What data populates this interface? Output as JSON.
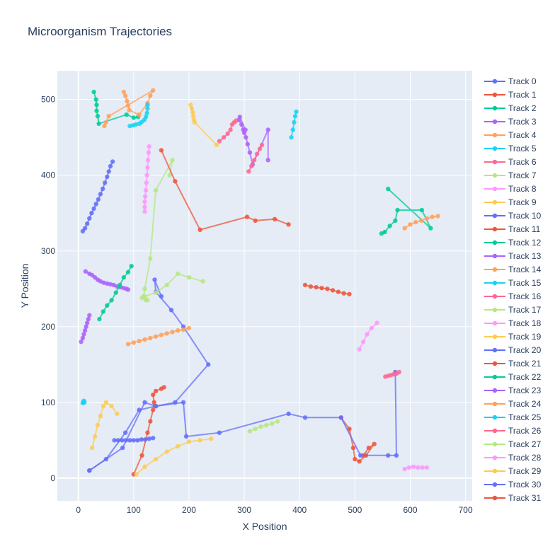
{
  "chart_data": {
    "type": "line",
    "title": "Microorganism Trajectories",
    "xlabel": "X Position",
    "ylabel": "Y Position",
    "xlim": [
      -38,
      712
    ],
    "ylim": [
      -30,
      538
    ],
    "xticks": [
      0,
      100,
      200,
      300,
      400,
      500,
      600,
      700
    ],
    "yticks": [
      0,
      100,
      200,
      300,
      400,
      500
    ],
    "grid": true,
    "legend_position": "right",
    "colors": {
      "plot_bg": "#e5ecf6",
      "grid": "#ffffff",
      "text": "#2a3f5f",
      "palette": [
        "#636efa",
        "#EF553B",
        "#00cc96",
        "#ab63fa",
        "#FFA15A",
        "#19d3f3",
        "#FF6692",
        "#B6E880",
        "#FF97FF",
        "#FECB52"
      ]
    },
    "series": [
      {
        "name": "Track 0",
        "points": [
          [
            20,
            10
          ],
          [
            50,
            25
          ],
          [
            85,
            60
          ],
          [
            110,
            90
          ],
          [
            140,
            95
          ],
          [
            175,
            100
          ],
          [
            235,
            150
          ],
          [
            190,
            200
          ],
          [
            168,
            222
          ],
          [
            140,
            246
          ],
          [
            138,
            262
          ],
          [
            150,
            240
          ]
        ]
      },
      {
        "name": "Track 1",
        "points": [
          [
            475,
            80
          ],
          [
            490,
            65
          ],
          [
            497,
            40
          ],
          [
            500,
            25
          ],
          [
            508,
            22
          ],
          [
            520,
            30
          ],
          [
            535,
            45
          ],
          [
            525,
            40
          ],
          [
            515,
            30
          ]
        ]
      },
      {
        "name": "Track 2",
        "points": [
          [
            28,
            510
          ],
          [
            32,
            500
          ],
          [
            33,
            493
          ],
          [
            33,
            485
          ],
          [
            35,
            478
          ],
          [
            37,
            468
          ],
          [
            87,
            480
          ],
          [
            100,
            476
          ],
          [
            108,
            477
          ]
        ]
      },
      {
        "name": "Track 3",
        "points": [
          [
            302,
            460
          ],
          [
            292,
            477
          ],
          [
            290,
            473
          ],
          [
            295,
            467
          ],
          [
            298,
            460
          ],
          [
            300,
            456
          ],
          [
            303,
            450
          ],
          [
            306,
            441
          ],
          [
            310,
            430
          ],
          [
            315,
            414
          ],
          [
            343,
            460
          ],
          [
            343,
            420
          ]
        ]
      },
      {
        "name": "Track 4",
        "points": [
          [
            82,
            510
          ],
          [
            85,
            505
          ],
          [
            88,
            498
          ],
          [
            90,
            492
          ],
          [
            92,
            486
          ],
          [
            110,
            480
          ],
          [
            125,
            495
          ],
          [
            130,
            505
          ],
          [
            135,
            512
          ],
          [
            55,
            478
          ],
          [
            50,
            470
          ],
          [
            47,
            465
          ]
        ]
      },
      {
        "name": "Track 5",
        "points": [
          [
            93,
            465
          ],
          [
            99,
            466
          ],
          [
            104,
            467
          ],
          [
            110,
            468
          ],
          [
            114,
            470
          ],
          [
            119,
            473
          ],
          [
            122,
            477
          ],
          [
            124,
            482
          ],
          [
            125,
            488
          ],
          [
            125,
            493
          ]
        ]
      },
      {
        "name": "Track 6",
        "points": [
          [
            255,
            445
          ],
          [
            263,
            450
          ],
          [
            270,
            455
          ],
          [
            275,
            460
          ],
          [
            278,
            467
          ],
          [
            282,
            470
          ],
          [
            285,
            472
          ]
        ]
      },
      {
        "name": "Track 7",
        "points": [
          [
            165,
            400
          ],
          [
            170,
            420
          ],
          [
            140,
            380
          ],
          [
            130,
            290
          ],
          [
            120,
            250
          ],
          [
            118,
            240
          ],
          [
            122,
            235
          ],
          [
            125,
            235
          ]
        ]
      },
      {
        "name": "Track 8",
        "points": [
          [
            128,
            438
          ],
          [
            127,
            430
          ],
          [
            126,
            420
          ],
          [
            125,
            410
          ],
          [
            124,
            400
          ],
          [
            123,
            390
          ],
          [
            122,
            380
          ],
          [
            121,
            372
          ],
          [
            120,
            365
          ],
          [
            120,
            358
          ],
          [
            120,
            352
          ]
        ]
      },
      {
        "name": "Track 9",
        "points": [
          [
            203,
            493
          ],
          [
            205,
            488
          ],
          [
            207,
            483
          ],
          [
            208,
            478
          ],
          [
            209,
            473
          ],
          [
            210,
            470
          ],
          [
            250,
            440
          ]
        ]
      },
      {
        "name": "Track 10",
        "points": [
          [
            62,
            418
          ],
          [
            58,
            412
          ],
          [
            55,
            405
          ],
          [
            52,
            398
          ],
          [
            48,
            390
          ],
          [
            44,
            382
          ],
          [
            40,
            375
          ],
          [
            36,
            368
          ],
          [
            32,
            362
          ],
          [
            28,
            356
          ],
          [
            24,
            350
          ],
          [
            20,
            343
          ],
          [
            16,
            336
          ],
          [
            12,
            330
          ],
          [
            8,
            326
          ]
        ]
      },
      {
        "name": "Track 11",
        "points": [
          [
            150,
            433
          ],
          [
            175,
            392
          ],
          [
            220,
            328
          ],
          [
            305,
            345
          ],
          [
            320,
            340
          ],
          [
            355,
            342
          ],
          [
            380,
            335
          ]
        ]
      },
      {
        "name": "Track 12",
        "points": [
          [
            560,
            382
          ],
          [
            637,
            330
          ],
          [
            621,
            354
          ],
          [
            577,
            354
          ],
          [
            573,
            340
          ],
          [
            563,
            333
          ],
          [
            554,
            325
          ],
          [
            548,
            323
          ]
        ]
      },
      {
        "name": "Track 13",
        "points": [
          [
            13,
            273
          ],
          [
            20,
            270
          ],
          [
            25,
            268
          ],
          [
            30,
            265
          ],
          [
            35,
            262
          ],
          [
            40,
            260
          ],
          [
            46,
            258
          ],
          [
            52,
            257
          ],
          [
            58,
            256
          ],
          [
            64,
            255
          ],
          [
            70,
            253
          ],
          [
            76,
            252
          ],
          [
            82,
            251
          ],
          [
            87,
            250
          ],
          [
            90,
            249
          ]
        ]
      },
      {
        "name": "Track 14",
        "points": [
          [
            90,
            177
          ],
          [
            100,
            179
          ],
          [
            110,
            181
          ],
          [
            120,
            183
          ],
          [
            130,
            185
          ],
          [
            140,
            187
          ],
          [
            150,
            189
          ],
          [
            160,
            191
          ],
          [
            170,
            193
          ],
          [
            180,
            195
          ],
          [
            190,
            196
          ],
          [
            200,
            198
          ]
        ]
      },
      {
        "name": "Track 15",
        "points": [
          [
            385,
            450
          ],
          [
            388,
            460
          ],
          [
            390,
            470
          ],
          [
            392,
            478
          ],
          [
            394,
            484
          ]
        ]
      },
      {
        "name": "Track 16",
        "points": [
          [
            308,
            405
          ],
          [
            313,
            412
          ],
          [
            318,
            420
          ],
          [
            323,
            428
          ],
          [
            328,
            435
          ],
          [
            332,
            440
          ]
        ]
      },
      {
        "name": "Track 17",
        "points": [
          [
            225,
            260
          ],
          [
            200,
            265
          ],
          [
            180,
            270
          ],
          [
            160,
            255
          ],
          [
            140,
            245
          ],
          [
            120,
            240
          ],
          [
            115,
            238
          ]
        ]
      },
      {
        "name": "Track 18",
        "points": [
          [
            508,
            170
          ],
          [
            515,
            180
          ],
          [
            522,
            190
          ],
          [
            530,
            198
          ],
          [
            540,
            205
          ]
        ]
      },
      {
        "name": "Track 19",
        "points": [
          [
            25,
            40
          ],
          [
            30,
            55
          ],
          [
            35,
            70
          ],
          [
            40,
            82
          ],
          [
            45,
            95
          ],
          [
            50,
            100
          ],
          [
            60,
            95
          ],
          [
            70,
            85
          ]
        ]
      },
      {
        "name": "Track 20",
        "points": [
          [
            20,
            10
          ],
          [
            80,
            40
          ],
          [
            120,
            100
          ],
          [
            140,
            95
          ],
          [
            190,
            100
          ],
          [
            195,
            55
          ],
          [
            255,
            60
          ],
          [
            380,
            85
          ],
          [
            410,
            80
          ],
          [
            475,
            80
          ],
          [
            510,
            30
          ],
          [
            560,
            30
          ],
          [
            575,
            30
          ],
          [
            573,
            140
          ]
        ]
      },
      {
        "name": "Track 21",
        "points": [
          [
            100,
            5
          ],
          [
            115,
            30
          ],
          [
            125,
            60
          ],
          [
            130,
            75
          ],
          [
            135,
            90
          ],
          [
            137,
            100
          ],
          [
            135,
            110
          ],
          [
            140,
            115
          ],
          [
            150,
            118
          ],
          [
            155,
            120
          ]
        ]
      },
      {
        "name": "Track 22",
        "points": [
          [
            38,
            210
          ],
          [
            45,
            220
          ],
          [
            52,
            228
          ],
          [
            60,
            235
          ],
          [
            68,
            245
          ],
          [
            75,
            255
          ],
          [
            82,
            265
          ],
          [
            90,
            272
          ],
          [
            96,
            280
          ]
        ]
      },
      {
        "name": "Track 23",
        "points": [
          [
            5,
            180
          ],
          [
            8,
            185
          ],
          [
            10,
            190
          ],
          [
            12,
            195
          ],
          [
            14,
            200
          ],
          [
            16,
            205
          ],
          [
            18,
            210
          ],
          [
            20,
            215
          ]
        ]
      },
      {
        "name": "Track 24",
        "points": [
          [
            590,
            330
          ],
          [
            600,
            335
          ],
          [
            610,
            338
          ],
          [
            620,
            340
          ],
          [
            630,
            343
          ],
          [
            640,
            345
          ],
          [
            650,
            346
          ]
        ]
      },
      {
        "name": "Track 25",
        "points": [
          [
            8,
            99
          ],
          [
            9,
            101
          ],
          [
            10,
            102
          ],
          [
            11,
            100
          ]
        ]
      },
      {
        "name": "Track 26",
        "points": [
          [
            580,
            140
          ],
          [
            575,
            138
          ],
          [
            570,
            137
          ],
          [
            565,
            136
          ],
          [
            560,
            135
          ],
          [
            555,
            134
          ]
        ]
      },
      {
        "name": "Track 27",
        "points": [
          [
            310,
            62
          ],
          [
            320,
            65
          ],
          [
            330,
            68
          ],
          [
            340,
            70
          ],
          [
            350,
            72
          ],
          [
            360,
            75
          ]
        ]
      },
      {
        "name": "Track 28",
        "points": [
          [
            590,
            12
          ],
          [
            598,
            14
          ],
          [
            606,
            15
          ],
          [
            614,
            14
          ],
          [
            622,
            14
          ],
          [
            630,
            14
          ]
        ]
      },
      {
        "name": "Track 29",
        "points": [
          [
            105,
            5
          ],
          [
            120,
            15
          ],
          [
            140,
            25
          ],
          [
            160,
            35
          ],
          [
            180,
            42
          ],
          [
            200,
            48
          ],
          [
            220,
            50
          ],
          [
            240,
            52
          ]
        ]
      },
      {
        "name": "Track 30",
        "points": [
          [
            65,
            50
          ],
          [
            72,
            50
          ],
          [
            79,
            50
          ],
          [
            86,
            50
          ],
          [
            93,
            50
          ],
          [
            100,
            50
          ],
          [
            107,
            50
          ],
          [
            114,
            51
          ],
          [
            121,
            51
          ],
          [
            128,
            52
          ],
          [
            135,
            53
          ]
        ]
      },
      {
        "name": "Track 31",
        "points": [
          [
            410,
            255
          ],
          [
            420,
            253
          ],
          [
            430,
            252
          ],
          [
            440,
            251
          ],
          [
            450,
            250
          ],
          [
            460,
            248
          ],
          [
            470,
            246
          ],
          [
            480,
            244
          ],
          [
            490,
            243
          ]
        ]
      }
    ]
  }
}
